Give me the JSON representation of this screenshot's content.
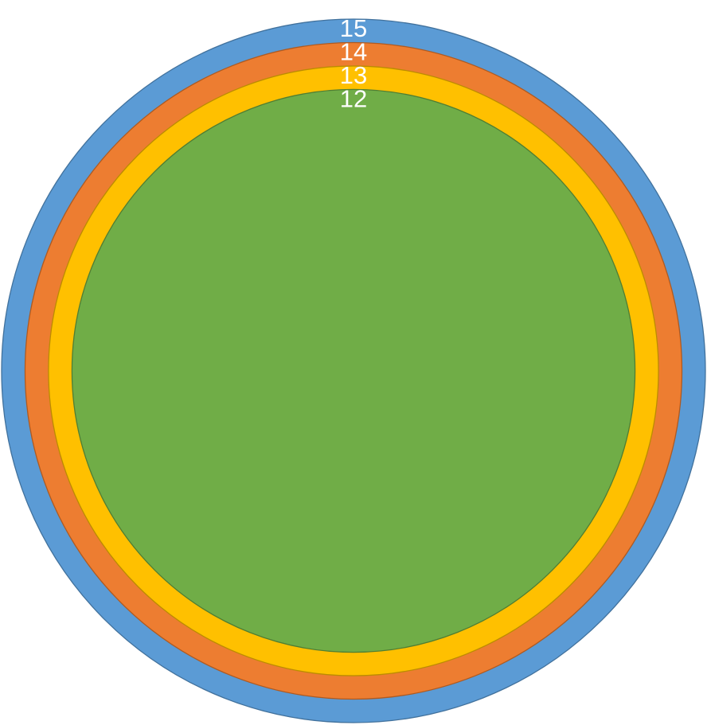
{
  "chart_data": {
    "type": "nested-circles",
    "values": [
      15,
      14,
      13,
      12
    ],
    "colors": [
      "#5b9bd5",
      "#ed7d31",
      "#ffc000",
      "#70ad47"
    ],
    "strokes": [
      "#41719c",
      "#ae5a21",
      "#bc8c00",
      "#507e32"
    ]
  }
}
